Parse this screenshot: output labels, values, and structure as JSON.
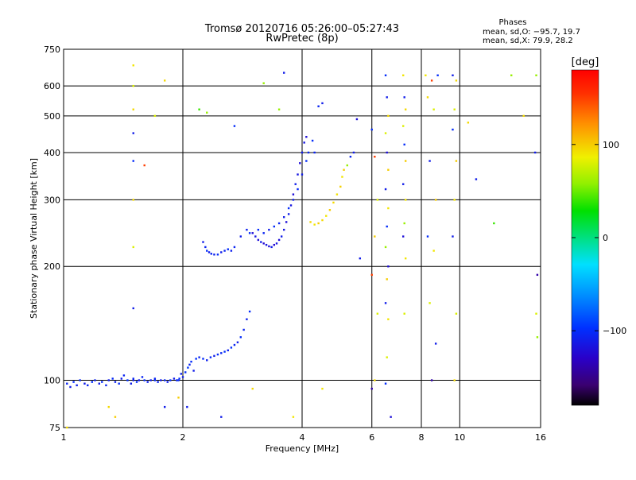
{
  "chart_data": {
    "type": "scatter",
    "title": "Tromsø 20120716 05:26:00–05:27:43",
    "subtitle": "RwPretec (8p)",
    "xlabel": "Frequency [MHz]",
    "ylabel": "Stationary phase Virtual Height [km]",
    "xscale": "log",
    "yscale": "log",
    "xlim": [
      1,
      16
    ],
    "ylim": [
      75,
      750
    ],
    "x_ticks": [
      {
        "value": 1,
        "label": "1"
      },
      {
        "value": 2,
        "label": "2"
      },
      {
        "value": 4,
        "label": "4"
      },
      {
        "value": 6,
        "label": "6"
      },
      {
        "value": 8,
        "label": "8"
      },
      {
        "value": 10,
        "label": "10"
      },
      {
        "value": 16,
        "label": "16"
      }
    ],
    "y_ticks": [
      {
        "value": 75,
        "label": "75"
      },
      {
        "value": 100,
        "label": "100"
      },
      {
        "value": 200,
        "label": "200"
      },
      {
        "value": 300,
        "label": "300"
      },
      {
        "value": 400,
        "label": "400"
      },
      {
        "value": 500,
        "label": "500"
      },
      {
        "value": 600,
        "label": "600"
      },
      {
        "value": 750,
        "label": "750"
      }
    ],
    "grid": true,
    "phase_info": {
      "heading": "Phases",
      "line_o": "mean, sd,O: −95.7, 19.7",
      "line_x": "mean, sd,X:  79.9, 28.2"
    },
    "colorbar": {
      "label": "[deg]",
      "range": [
        -180,
        180
      ],
      "ticks": [
        {
          "value": 100,
          "label": "100"
        },
        {
          "value": 0,
          "label": "0"
        },
        {
          "value": -100,
          "label": "−100"
        }
      ]
    },
    "points": [
      [
        1.02,
        98,
        -105
      ],
      [
        1.04,
        96,
        -110
      ],
      [
        1.06,
        99,
        -100
      ],
      [
        1.08,
        97,
        -108
      ],
      [
        1.1,
        100,
        -102
      ],
      [
        1.13,
        98,
        -110
      ],
      [
        1.15,
        97,
        -105
      ],
      [
        1.18,
        99,
        -100
      ],
      [
        1.2,
        100,
        -108
      ],
      [
        1.23,
        98,
        -110
      ],
      [
        1.25,
        99,
        -100
      ],
      [
        1.28,
        97,
        -105
      ],
      [
        1.3,
        100,
        -110
      ],
      [
        1.33,
        101,
        -102
      ],
      [
        1.35,
        99,
        -108
      ],
      [
        1.38,
        98,
        -100
      ],
      [
        1.4,
        101,
        -110
      ],
      [
        1.42,
        103,
        -105
      ],
      [
        1.45,
        100,
        -98
      ],
      [
        1.48,
        98,
        -110
      ],
      [
        1.5,
        101,
        -105
      ],
      [
        1.53,
        99,
        -100
      ],
      [
        1.55,
        100,
        -112
      ],
      [
        1.58,
        102,
        -105
      ],
      [
        1.6,
        100,
        -100
      ],
      [
        1.63,
        99,
        -108
      ],
      [
        1.66,
        100,
        -110
      ],
      [
        1.7,
        100,
        -102
      ],
      [
        1.73,
        99,
        -106
      ],
      [
        1.76,
        100,
        -110
      ],
      [
        1.8,
        100,
        -104
      ],
      [
        1.83,
        99,
        -108
      ],
      [
        1.86,
        100,
        -100
      ],
      [
        1.9,
        101,
        -112
      ],
      [
        1.93,
        100,
        -105
      ],
      [
        1.96,
        101,
        -100
      ],
      [
        1.98,
        104,
        -108
      ],
      [
        2.0,
        102,
        -110
      ],
      [
        2.03,
        105,
        -100
      ],
      [
        2.06,
        108,
        -95
      ],
      [
        2.08,
        110,
        -105
      ],
      [
        2.1,
        112,
        -100
      ],
      [
        2.13,
        106,
        -110
      ],
      [
        2.16,
        114,
        -98
      ],
      [
        2.2,
        115,
        -105
      ],
      [
        2.25,
        114,
        -100
      ],
      [
        2.3,
        113,
        -108
      ],
      [
        2.35,
        115,
        -102
      ],
      [
        2.4,
        116,
        -110
      ],
      [
        2.45,
        117,
        -100
      ],
      [
        2.5,
        118,
        -105
      ],
      [
        2.55,
        119,
        -98
      ],
      [
        2.6,
        120,
        -108
      ],
      [
        2.65,
        122,
        -100
      ],
      [
        2.7,
        124,
        -105
      ],
      [
        2.75,
        126,
        -110
      ],
      [
        2.8,
        130,
        -100
      ],
      [
        2.85,
        136,
        -105
      ],
      [
        2.9,
        145,
        -108
      ],
      [
        2.95,
        152,
        -100
      ],
      [
        1.5,
        100,
        -110
      ],
      [
        1.7,
        101,
        -105
      ],
      [
        1.95,
        100,
        -100
      ],
      [
        2.25,
        232,
        -110
      ],
      [
        2.28,
        225,
        -105
      ],
      [
        2.3,
        220,
        -100
      ],
      [
        2.33,
        218,
        -110
      ],
      [
        2.36,
        216,
        -105
      ],
      [
        2.4,
        215,
        -108
      ],
      [
        2.45,
        215,
        -100
      ],
      [
        2.5,
        218,
        -110
      ],
      [
        2.55,
        220,
        -105
      ],
      [
        2.6,
        222,
        -100
      ],
      [
        2.65,
        220,
        -108
      ],
      [
        2.7,
        225,
        -105
      ],
      [
        2.8,
        240,
        -110
      ],
      [
        2.9,
        250,
        -108
      ],
      [
        2.95,
        245,
        -100
      ],
      [
        3.0,
        245,
        -120
      ],
      [
        3.05,
        240,
        -115
      ],
      [
        3.1,
        235,
        -120
      ],
      [
        3.15,
        232,
        -110
      ],
      [
        3.2,
        230,
        -125
      ],
      [
        3.25,
        228,
        -115
      ],
      [
        3.3,
        226,
        -120
      ],
      [
        3.35,
        225,
        -110
      ],
      [
        3.4,
        228,
        -125
      ],
      [
        3.45,
        230,
        -115
      ],
      [
        3.5,
        235,
        -120
      ],
      [
        3.55,
        240,
        -110
      ],
      [
        3.6,
        250,
        -115
      ],
      [
        3.65,
        262,
        -120
      ],
      [
        3.7,
        275,
        -110
      ],
      [
        3.75,
        290,
        -115
      ],
      [
        3.8,
        310,
        -120
      ],
      [
        3.85,
        330,
        -110
      ],
      [
        3.9,
        350,
        -115
      ],
      [
        3.95,
        375,
        -120
      ],
      [
        4.0,
        400,
        -110
      ],
      [
        4.05,
        425,
        -115
      ],
      [
        4.1,
        440,
        -120
      ],
      [
        3.1,
        250,
        -100
      ],
      [
        3.2,
        245,
        -105
      ],
      [
        3.3,
        250,
        -110
      ],
      [
        3.4,
        255,
        -100
      ],
      [
        3.5,
        260,
        -105
      ],
      [
        3.6,
        270,
        -110
      ],
      [
        3.7,
        285,
        -100
      ],
      [
        3.8,
        300,
        -108
      ],
      [
        3.9,
        320,
        -102
      ],
      [
        4.0,
        350,
        -110
      ],
      [
        4.1,
        380,
        -100
      ],
      [
        4.15,
        400,
        -105
      ],
      [
        4.2,
        262,
        95
      ],
      [
        4.3,
        258,
        90
      ],
      [
        4.4,
        260,
        100
      ],
      [
        4.5,
        265,
        95
      ],
      [
        4.6,
        272,
        90
      ],
      [
        4.7,
        282,
        100
      ],
      [
        4.8,
        295,
        95
      ],
      [
        4.9,
        310,
        92
      ],
      [
        5.0,
        325,
        98
      ],
      [
        5.05,
        345,
        90
      ],
      [
        5.1,
        360,
        100
      ],
      [
        4.25,
        430,
        -100
      ],
      [
        4.3,
        400,
        -105
      ],
      [
        4.5,
        540,
        -110
      ],
      [
        5.3,
        390,
        -105
      ],
      [
        5.4,
        400,
        -110
      ],
      [
        5.2,
        370,
        60
      ],
      [
        6.5,
        640,
        -100
      ],
      [
        6.55,
        560,
        -110
      ],
      [
        6.6,
        500,
        95
      ],
      [
        6.5,
        450,
        80
      ],
      [
        6.55,
        400,
        -120
      ],
      [
        6.6,
        360,
        100
      ],
      [
        6.5,
        320,
        -110
      ],
      [
        6.6,
        285,
        90
      ],
      [
        6.55,
        255,
        -100
      ],
      [
        6.5,
        225,
        60
      ],
      [
        6.6,
        200,
        -120
      ],
      [
        6.55,
        185,
        100
      ],
      [
        6.5,
        160,
        -110
      ],
      [
        6.6,
        145,
        90
      ],
      [
        6.55,
        115,
        80
      ],
      [
        6.5,
        98,
        -100
      ],
      [
        7.2,
        640,
        90
      ],
      [
        7.25,
        560,
        -110
      ],
      [
        7.3,
        520,
        95
      ],
      [
        7.2,
        470,
        80
      ],
      [
        7.25,
        420,
        -100
      ],
      [
        7.3,
        380,
        100
      ],
      [
        7.2,
        330,
        -110
      ],
      [
        7.3,
        300,
        90
      ],
      [
        7.25,
        260,
        60
      ],
      [
        7.2,
        240,
        -120
      ],
      [
        7.3,
        210,
        90
      ],
      [
        7.25,
        150,
        80
      ],
      [
        8.2,
        640,
        90
      ],
      [
        8.5,
        620,
        150
      ],
      [
        8.8,
        640,
        -100
      ],
      [
        8.3,
        560,
        95
      ],
      [
        8.6,
        520,
        80
      ],
      [
        8.4,
        380,
        -110
      ],
      [
        8.7,
        300,
        100
      ],
      [
        8.3,
        240,
        -100
      ],
      [
        8.6,
        220,
        90
      ],
      [
        8.4,
        160,
        80
      ],
      [
        8.7,
        125,
        -110
      ],
      [
        8.5,
        100,
        -140
      ],
      [
        9.6,
        640,
        -110
      ],
      [
        9.8,
        620,
        95
      ],
      [
        9.7,
        520,
        80
      ],
      [
        9.6,
        460,
        -100
      ],
      [
        9.8,
        380,
        100
      ],
      [
        9.7,
        300,
        90
      ],
      [
        9.6,
        240,
        -110
      ],
      [
        9.8,
        150,
        80
      ],
      [
        9.7,
        100,
        95
      ],
      [
        1.5,
        680,
        90
      ],
      [
        1.5,
        600,
        80
      ],
      [
        1.5,
        520,
        95
      ],
      [
        1.5,
        450,
        -110
      ],
      [
        1.5,
        380,
        -100
      ],
      [
        1.5,
        300,
        95
      ],
      [
        1.5,
        225,
        80
      ],
      [
        1.5,
        155,
        -110
      ],
      [
        1.6,
        370,
        150
      ],
      [
        1.7,
        500,
        80
      ],
      [
        1.8,
        620,
        95
      ],
      [
        2.2,
        520,
        40
      ],
      [
        2.3,
        510,
        60
      ],
      [
        2.7,
        470,
        -100
      ],
      [
        3.2,
        610,
        60
      ],
      [
        3.6,
        650,
        -110
      ],
      [
        3.5,
        520,
        60
      ],
      [
        4.4,
        530,
        -105
      ],
      [
        5.5,
        490,
        -120
      ],
      [
        6.0,
        460,
        -100
      ],
      [
        6.1,
        390,
        150
      ],
      [
        6.2,
        300,
        80
      ],
      [
        6.1,
        240,
        100
      ],
      [
        6.0,
        190,
        150
      ],
      [
        6.1,
        100,
        95
      ],
      [
        6.0,
        95,
        -140
      ],
      [
        6.2,
        150,
        80
      ],
      [
        5.6,
        210,
        -110
      ],
      [
        10.5,
        480,
        95
      ],
      [
        11.0,
        340,
        -110
      ],
      [
        12.2,
        260,
        40
      ],
      [
        13.5,
        640,
        60
      ],
      [
        14.5,
        500,
        95
      ],
      [
        15.5,
        400,
        -110
      ],
      [
        15.6,
        640,
        60
      ],
      [
        15.7,
        190,
        -140
      ],
      [
        15.6,
        150,
        80
      ],
      [
        15.7,
        130,
        60
      ],
      [
        1.3,
        85,
        95
      ],
      [
        1.35,
        80,
        100
      ],
      [
        2.5,
        80,
        -110
      ],
      [
        3.0,
        95,
        95
      ],
      [
        4.5,
        95,
        90
      ],
      [
        1.8,
        85,
        -110
      ],
      [
        1.95,
        90,
        100
      ],
      [
        2.05,
        85,
        -110
      ],
      [
        3.8,
        80,
        90
      ],
      [
        1.02,
        75,
        95
      ],
      [
        6.7,
        80,
        -120
      ]
    ]
  }
}
